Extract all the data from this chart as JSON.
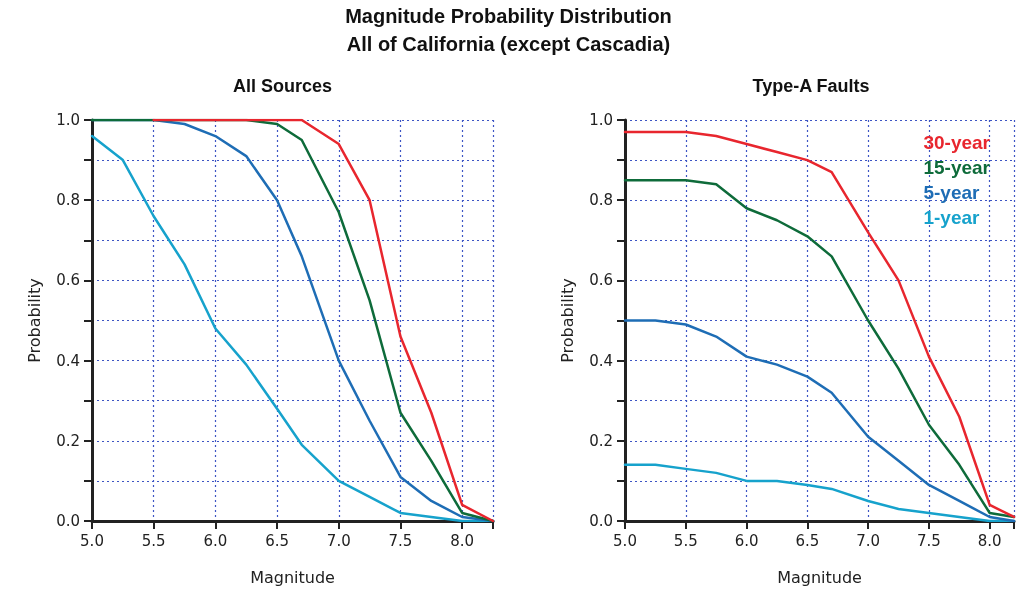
{
  "chart_data": [
    {
      "type": "line",
      "title": "Magnitude Probability Distribution",
      "subtitle": "All of California (except Cascadia)",
      "annotations": [
        "All Sources"
      ],
      "xlabel": "Magnitude",
      "ylabel": "Probability",
      "xlim": [
        5,
        8.25
      ],
      "ylim": [
        0,
        1
      ],
      "xticks": [
        {
          "value": 5,
          "label": "5.0"
        },
        {
          "value": 5.5,
          "label": "5.5"
        },
        {
          "value": 6,
          "label": "6.0"
        },
        {
          "value": 6.5,
          "label": "6.5"
        },
        {
          "value": 7,
          "label": "7.0"
        },
        {
          "value": 7.5,
          "label": "7.5"
        },
        {
          "value": 8,
          "label": "8.0"
        }
      ],
      "yticks": [
        {
          "value": 0,
          "label": "0.0"
        },
        {
          "value": 0.1,
          "label": null
        },
        {
          "value": 0.2,
          "label": "0.2"
        },
        {
          "value": 0.3,
          "label": null
        },
        {
          "value": 0.4,
          "label": "0.4"
        },
        {
          "value": 0.5,
          "label": null
        },
        {
          "value": 0.6,
          "label": "0.6"
        },
        {
          "value": 0.7,
          "label": null
        },
        {
          "value": 0.8,
          "label": "0.8"
        },
        {
          "value": 0.9,
          "label": null
        },
        {
          "value": 1,
          "label": "1.0"
        }
      ],
      "grid": true,
      "marker": "none",
      "line_style": "solid",
      "x": [
        5,
        5.25,
        5.5,
        5.75,
        6,
        6.25,
        6.5,
        6.7,
        7,
        7.25,
        7.5,
        7.75,
        8,
        8.25
      ],
      "series": [
        {
          "color": "#e8262e",
          "values": [
            null,
            null,
            1,
            1,
            1,
            1,
            1,
            1,
            0.94,
            0.8,
            0.46,
            0.27,
            0.04,
            0
          ]
        },
        {
          "color": "#0e6b3a",
          "values": [
            1,
            1,
            1,
            1,
            1,
            1,
            0.99,
            0.95,
            0.77,
            0.55,
            0.27,
            0.15,
            0.02,
            0
          ]
        },
        {
          "color": "#1e6db5",
          "values": [
            1,
            1,
            1,
            0.99,
            0.96,
            0.91,
            0.8,
            0.66,
            0.4,
            0.25,
            0.11,
            0.05,
            0.01,
            0
          ]
        },
        {
          "color": "#16a2cc",
          "values": [
            0.96,
            0.9,
            0.76,
            0.64,
            0.48,
            0.39,
            0.28,
            0.19,
            0.1,
            0.06,
            0.02,
            0.01,
            0,
            0
          ]
        }
      ]
    },
    {
      "type": "line",
      "title": "Type-A Faults",
      "xlabel": "Magnitude",
      "ylabel": "Probability",
      "xlim": [
        5,
        8.2
      ],
      "ylim": [
        0,
        1
      ],
      "xticks": [
        {
          "value": 5,
          "label": "5.0"
        },
        {
          "value": 5.5,
          "label": "5.5"
        },
        {
          "value": 6,
          "label": "6.0"
        },
        {
          "value": 6.5,
          "label": "6.5"
        },
        {
          "value": 7,
          "label": "7.0"
        },
        {
          "value": 7.5,
          "label": "7.5"
        },
        {
          "value": 8,
          "label": "8.0"
        }
      ],
      "yticks": [
        {
          "value": 0,
          "label": "0.0"
        },
        {
          "value": 0.1,
          "label": null
        },
        {
          "value": 0.2,
          "label": "0.2"
        },
        {
          "value": 0.3,
          "label": null
        },
        {
          "value": 0.4,
          "label": "0.4"
        },
        {
          "value": 0.5,
          "label": null
        },
        {
          "value": 0.6,
          "label": "0.6"
        },
        {
          "value": 0.7,
          "label": null
        },
        {
          "value": 0.8,
          "label": "0.8"
        },
        {
          "value": 0.9,
          "label": null
        },
        {
          "value": 1,
          "label": "1.0"
        }
      ],
      "grid": true,
      "marker": "none",
      "line_style": "solid",
      "legend": "top right",
      "x": [
        5,
        5.25,
        5.5,
        5.75,
        6,
        6.25,
        6.5,
        6.7,
        7,
        7.25,
        7.5,
        7.75,
        8,
        8.2
      ],
      "series": [
        {
          "name": "30-year",
          "color": "#e8262e",
          "values": [
            0.97,
            0.97,
            0.97,
            0.96,
            0.94,
            0.92,
            0.9,
            0.87,
            0.72,
            0.6,
            0.41,
            0.26,
            0.04,
            0.01
          ]
        },
        {
          "name": "15-year",
          "color": "#0e6b3a",
          "values": [
            0.85,
            0.85,
            0.85,
            0.84,
            0.78,
            0.75,
            0.71,
            0.66,
            0.5,
            0.38,
            0.24,
            0.14,
            0.02,
            0.01
          ]
        },
        {
          "name": "5-year",
          "color": "#1e6db5",
          "values": [
            0.5,
            0.5,
            0.49,
            0.46,
            0.41,
            0.39,
            0.36,
            0.32,
            0.21,
            0.15,
            0.09,
            0.05,
            0.01,
            0
          ]
        },
        {
          "name": "1-year",
          "color": "#16a2cc",
          "values": [
            0.14,
            0.14,
            0.13,
            0.12,
            0.1,
            0.1,
            0.09,
            0.08,
            0.05,
            0.03,
            0.02,
            0.01,
            0,
            0
          ]
        }
      ]
    }
  ]
}
